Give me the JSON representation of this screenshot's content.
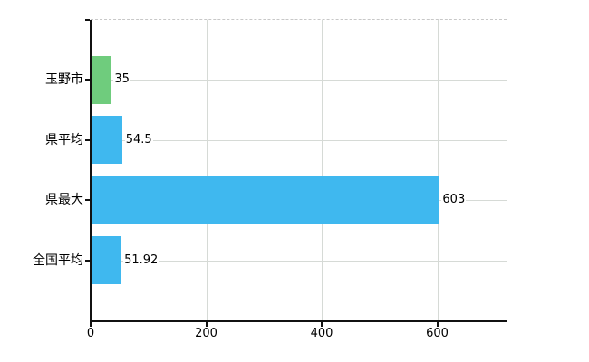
{
  "chart_data": {
    "type": "bar",
    "orientation": "horizontal",
    "title": "",
    "xlabel": "",
    "ylabel": "",
    "categories": [
      "玉野市",
      "県平均",
      "県最大",
      "全国平均"
    ],
    "values": [
      35,
      54.5,
      603,
      51.92
    ],
    "value_labels": [
      "35",
      "54.5",
      "603",
      "51.92"
    ],
    "bar_colors": [
      "#6fcc7d",
      "#3fb8ef",
      "#3fb8ef",
      "#3fb8ef"
    ],
    "xlim": [
      0,
      720
    ],
    "x_ticks": [
      0,
      200,
      400,
      600
    ],
    "x_tick_labels": [
      "0",
      "200",
      "400",
      "600"
    ],
    "grid": true,
    "legend": false
  },
  "colors": {
    "bar_green": "#6fcc7d",
    "bar_blue": "#3fb8ef",
    "gridline": "#d6dad6",
    "plot_top_border": "#c8c8c8",
    "axis": "#111111",
    "text": "#000000",
    "background": "#ffffff"
  }
}
